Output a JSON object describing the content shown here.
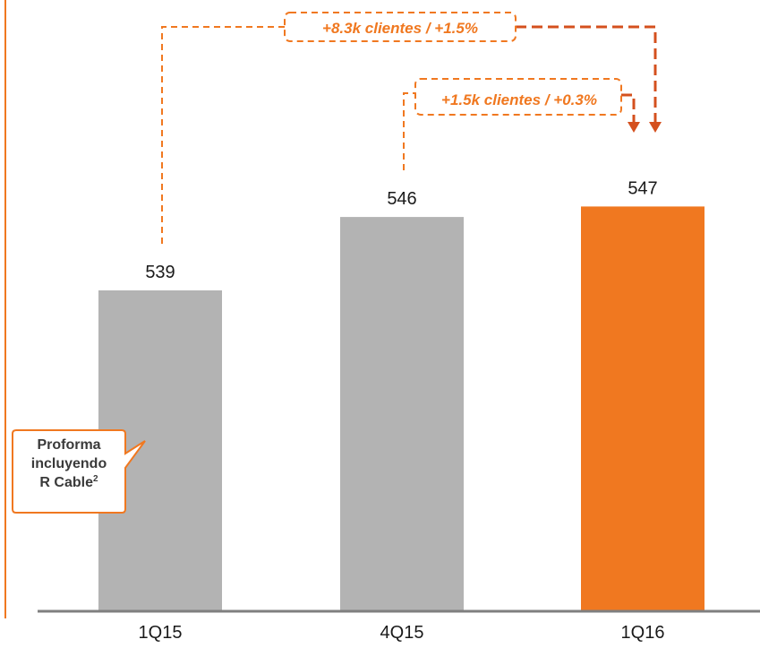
{
  "chart_data": {
    "type": "bar",
    "categories": [
      "1Q15",
      "4Q15",
      "1Q16"
    ],
    "values": [
      539,
      546,
      547
    ],
    "value_labels": [
      "539",
      "546",
      "547"
    ],
    "highlight_category": "1Q16",
    "colors": {
      "bar": "#b3b3b3",
      "highlight": "#f07820",
      "annotation": "#f07820",
      "arrow_dark": "#d4501e",
      "axis": "#7f7f7f",
      "text": "#1a1a1a"
    },
    "annotations": [
      {
        "text": "+8.3k clientes / +1.5%",
        "from": "1Q15",
        "to": "1Q16"
      },
      {
        "text": "+1.5k clientes / +0.3%",
        "from": "4Q15",
        "to": "1Q16"
      }
    ],
    "grid": false,
    "legend": "none"
  },
  "callout": {
    "line1": "Proforma",
    "line2": "incluyendo",
    "line3": "R Cable",
    "superscript": "2"
  }
}
